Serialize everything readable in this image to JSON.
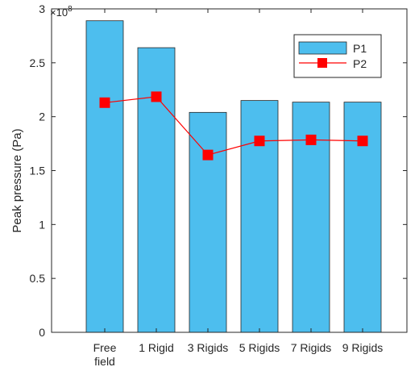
{
  "chart_data": {
    "type": "bar",
    "categories": [
      [
        "Free",
        "field"
      ],
      [
        "1 Rigid"
      ],
      [
        "3 Rigids"
      ],
      [
        "5 Rigids"
      ],
      [
        "7 Rigids"
      ],
      [
        "9 Rigids"
      ]
    ],
    "series": [
      {
        "name": "P1",
        "kind": "bar",
        "values": [
          2.89,
          2.64,
          2.04,
          2.15,
          2.135,
          2.135
        ],
        "color": "#4dbeee"
      },
      {
        "name": "P2",
        "kind": "line",
        "values": [
          2.13,
          2.185,
          1.645,
          1.775,
          1.785,
          1.775
        ],
        "color": "#ff0000"
      }
    ],
    "ylabel": "Peak pressure (Pa)",
    "y_exponent_label": "×10",
    "y_exponent_power": "8",
    "ylim": [
      0,
      3
    ],
    "yticks": [
      "0",
      "0.5",
      "1",
      "1.5",
      "2",
      "2.5",
      "3"
    ],
    "legend_position": "top-right",
    "grid": false
  }
}
